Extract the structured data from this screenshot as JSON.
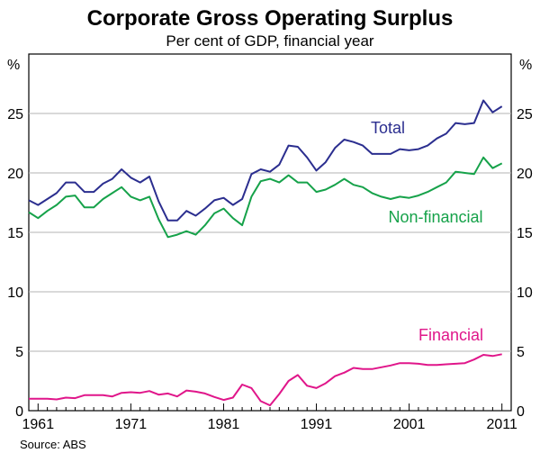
{
  "chart_data": {
    "type": "line",
    "title": "Corporate Gross Operating Surplus",
    "subtitle": "Per cent of GDP, financial year",
    "left_unit": "%",
    "right_unit": "%",
    "source": "Source: ABS",
    "ylim": [
      0,
      30
    ],
    "yticks": [
      0,
      5,
      10,
      15,
      20,
      25
    ],
    "xlim": [
      1960,
      2012
    ],
    "xticks": [
      1961,
      1971,
      1981,
      1991,
      2001,
      2011
    ],
    "x": [
      1960,
      1961,
      1962,
      1963,
      1964,
      1965,
      1966,
      1967,
      1968,
      1969,
      1970,
      1971,
      1972,
      1973,
      1974,
      1975,
      1976,
      1977,
      1978,
      1979,
      1980,
      1981,
      1982,
      1983,
      1984,
      1985,
      1986,
      1987,
      1988,
      1989,
      1990,
      1991,
      1992,
      1993,
      1994,
      1995,
      1996,
      1997,
      1998,
      1999,
      2000,
      2001,
      2002,
      2003,
      2004,
      2005,
      2006,
      2007,
      2008,
      2009,
      2010,
      2011
    ],
    "series": [
      {
        "name": "Total",
        "color": "#2b2e8f",
        "values": [
          17.7,
          17.3,
          17.8,
          18.3,
          19.2,
          19.2,
          18.4,
          18.4,
          19.1,
          19.5,
          20.3,
          19.6,
          19.2,
          19.7,
          17.6,
          16.0,
          16.0,
          16.8,
          16.4,
          17.0,
          17.7,
          17.9,
          17.3,
          17.8,
          19.9,
          20.3,
          20.1,
          20.7,
          22.3,
          22.2,
          21.3,
          20.2,
          20.9,
          22.1,
          22.8,
          22.6,
          22.3,
          21.6,
          21.6,
          21.6,
          22.0,
          21.9,
          22.0,
          22.3,
          22.9,
          23.3,
          24.2,
          24.1,
          24.2,
          26.1,
          25.1,
          25.6
        ]
      },
      {
        "name": "Non-financial",
        "color": "#16a24a",
        "values": [
          16.7,
          16.2,
          16.8,
          17.3,
          18.0,
          18.1,
          17.1,
          17.1,
          17.8,
          18.3,
          18.8,
          18.0,
          17.7,
          18.0,
          16.1,
          14.6,
          14.8,
          15.1,
          14.8,
          15.6,
          16.6,
          17.0,
          16.2,
          15.6,
          18.0,
          19.3,
          19.5,
          19.2,
          19.8,
          19.2,
          19.2,
          18.4,
          18.6,
          19.0,
          19.5,
          19.0,
          18.8,
          18.3,
          18.0,
          17.8,
          18.0,
          17.9,
          18.1,
          18.4,
          18.8,
          19.2,
          20.1,
          20.0,
          19.9,
          21.3,
          20.4,
          20.8
        ]
      },
      {
        "name": "Financial",
        "color": "#e0168a",
        "values": [
          1.0,
          1.0,
          1.0,
          0.95,
          1.1,
          1.05,
          1.3,
          1.3,
          1.3,
          1.2,
          1.5,
          1.55,
          1.5,
          1.65,
          1.35,
          1.45,
          1.2,
          1.7,
          1.6,
          1.45,
          1.15,
          0.9,
          1.1,
          2.2,
          1.9,
          0.8,
          0.45,
          1.4,
          2.5,
          3.0,
          2.1,
          1.9,
          2.3,
          2.9,
          3.2,
          3.6,
          3.5,
          3.5,
          3.65,
          3.8,
          4.0,
          4.0,
          3.95,
          3.85,
          3.85,
          3.9,
          3.95,
          4.0,
          4.3,
          4.7,
          4.6,
          4.75
        ]
      }
    ]
  }
}
